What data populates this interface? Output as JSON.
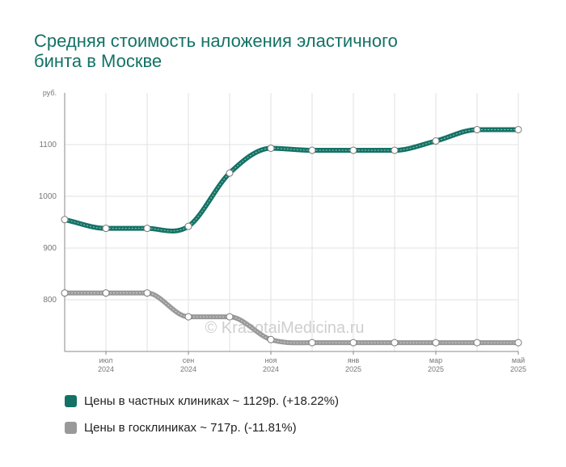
{
  "title": {
    "line1": "Средняя стоимость наложения эластичного",
    "line2": "бинта в Москве"
  },
  "watermark": "© KrasotaiMedicina.ru",
  "legend": [
    {
      "label": "Цены в частных клиниках ~ 1129р. (+18.22%)",
      "color": "#137265"
    },
    {
      "label": "Цены в госклиниках ~ 717р. (-11.81%)",
      "color": "#999999"
    }
  ],
  "chart_data": {
    "type": "line",
    "title": "Средняя стоимость наложения эластичного бинта в Москве",
    "y_unit": "руб.",
    "ylim": [
      700,
      1200
    ],
    "y_ticks": [
      800,
      900,
      1000,
      1100
    ],
    "grid": true,
    "x_tick_labels": [
      {
        "month": "июл",
        "year": "2024",
        "index": 1
      },
      {
        "month": "сен",
        "year": "2024",
        "index": 3
      },
      {
        "month": "ноя",
        "year": "2024",
        "index": 5
      },
      {
        "month": "янв",
        "year": "2025",
        "index": 7
      },
      {
        "month": "мар",
        "year": "2025",
        "index": 9
      },
      {
        "month": "май",
        "year": "2025",
        "index": 11
      }
    ],
    "x": [
      "2024-06",
      "2024-07",
      "2024-08",
      "2024-09",
      "2024-10",
      "2024-11",
      "2024-12",
      "2025-01",
      "2025-02",
      "2025-03",
      "2025-04",
      "2025-05"
    ],
    "series": [
      {
        "name": "Цены в частных клиниках",
        "color": "#137265",
        "values": [
          955,
          938,
          938,
          942,
          1045,
          1093,
          1089,
          1089,
          1089,
          1107,
          1129,
          1129
        ]
      },
      {
        "name": "Цены в госклиниках",
        "color": "#999999",
        "values": [
          813,
          813,
          813,
          767,
          767,
          723,
          717,
          717,
          717,
          717,
          717,
          717
        ]
      }
    ]
  }
}
